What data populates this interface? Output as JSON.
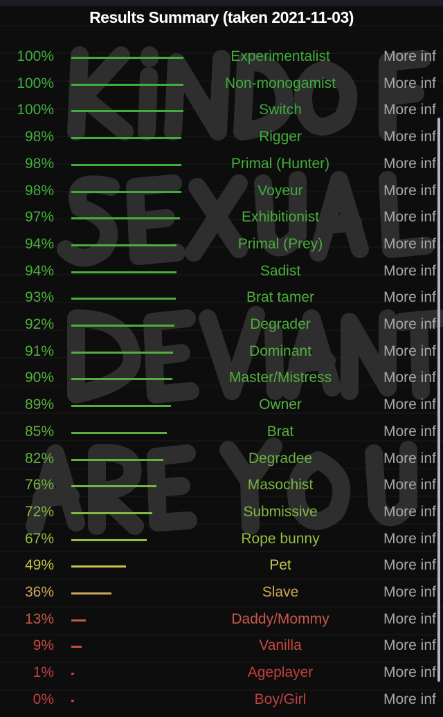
{
  "header": {
    "title": "Results Summary (taken 2021-11-03)"
  },
  "background": {
    "watermark": "KiNDOF SEXUAL DEVIANT ARE YOU"
  },
  "more_label": "More inf",
  "results": [
    {
      "pct": "100%",
      "value": 100,
      "name": "Experimentalist",
      "color": "#3fae3a"
    },
    {
      "pct": "100%",
      "value": 100,
      "name": "Non-monogamist",
      "color": "#3fae3a"
    },
    {
      "pct": "100%",
      "value": 100,
      "name": "Switch",
      "color": "#3fae3a"
    },
    {
      "pct": "98%",
      "value": 98,
      "name": "Rigger",
      "color": "#42ae3a"
    },
    {
      "pct": "98%",
      "value": 98,
      "name": "Primal (Hunter)",
      "color": "#42ae3a"
    },
    {
      "pct": "98%",
      "value": 98,
      "name": "Voyeur",
      "color": "#42ae3a"
    },
    {
      "pct": "97%",
      "value": 97,
      "name": "Exhibitionist",
      "color": "#46b03a"
    },
    {
      "pct": "94%",
      "value": 94,
      "name": "Primal (Prey)",
      "color": "#4ab03b"
    },
    {
      "pct": "94%",
      "value": 94,
      "name": "Sadist",
      "color": "#4ab03b"
    },
    {
      "pct": "93%",
      "value": 93,
      "name": "Brat tamer",
      "color": "#4db03c"
    },
    {
      "pct": "92%",
      "value": 92,
      "name": "Degrader",
      "color": "#4fb03c"
    },
    {
      "pct": "91%",
      "value": 91,
      "name": "Dominant",
      "color": "#52b03c"
    },
    {
      "pct": "90%",
      "value": 90,
      "name": "Master/Mistress",
      "color": "#54b03d"
    },
    {
      "pct": "89%",
      "value": 89,
      "name": "Owner",
      "color": "#56b03d"
    },
    {
      "pct": "85%",
      "value": 85,
      "name": "Brat",
      "color": "#5cb03e"
    },
    {
      "pct": "82%",
      "value": 82,
      "name": "Degradee",
      "color": "#66b040"
    },
    {
      "pct": "76%",
      "value": 76,
      "name": "Masochist",
      "color": "#76b440"
    },
    {
      "pct": "72%",
      "value": 72,
      "name": "Submissive",
      "color": "#84b842"
    },
    {
      "pct": "67%",
      "value": 67,
      "name": "Rope bunny",
      "color": "#98bc44"
    },
    {
      "pct": "49%",
      "value": 49,
      "name": "Pet",
      "color": "#c8c448"
    },
    {
      "pct": "36%",
      "value": 36,
      "name": "Slave",
      "color": "#c8a858"
    },
    {
      "pct": "13%",
      "value": 13,
      "name": "Daddy/Mommy",
      "color": "#c85a48"
    },
    {
      "pct": "9%",
      "value": 9,
      "name": "Vanilla",
      "color": "#c84a40"
    },
    {
      "pct": "1%",
      "value": 1,
      "name": "Ageplayer",
      "color": "#c04040"
    },
    {
      "pct": "0%",
      "value": 0,
      "name": "Boy/Girl",
      "color": "#c04040"
    }
  ]
}
